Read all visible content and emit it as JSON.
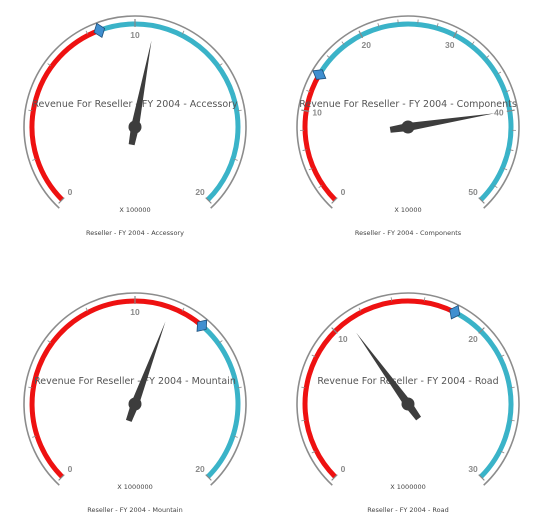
{
  "colors": {
    "bezel": "#8c8c8c",
    "low_range": "#ee1111",
    "high_range": "#3ab3c8",
    "needle": "#3d3d3d",
    "marker": "#3f8fd0",
    "marker_stroke": "#1e4f7a"
  },
  "chart_data": [
    {
      "type": "gauge",
      "title": "Revenue For Reseller - FY 2004 - Accessory",
      "unit_label": "X 100000",
      "caption": "Reseller - FY 2004 - Accessory",
      "min": 0,
      "max": 20,
      "major_ticks": [
        0,
        10,
        20
      ],
      "ranges": [
        {
          "from": 0,
          "to": 8.5,
          "color": "#ee1111"
        },
        {
          "from": 8.5,
          "to": 20,
          "color": "#3ab3c8"
        }
      ],
      "needle_value": 10.8,
      "marker_value": 8.5
    },
    {
      "type": "gauge",
      "title": "Revenue For Reseller - FY 2004 - Components",
      "unit_label": "X 10000",
      "caption": "Reseller - FY 2004 - Components",
      "min": 0,
      "max": 50,
      "major_ticks": [
        0,
        10,
        20,
        30,
        40,
        50
      ],
      "ranges": [
        {
          "from": 0,
          "to": 14,
          "color": "#ee1111"
        },
        {
          "from": 14,
          "to": 50,
          "color": "#3ab3c8"
        }
      ],
      "needle_value": 40,
      "marker_value": 14
    },
    {
      "type": "gauge",
      "title": "Revenue For Reseller - FY 2004 - Mountain",
      "unit_label": "X 1000000",
      "caption": "Reseller - FY 2004 - Mountain",
      "min": 0,
      "max": 20,
      "major_ticks": [
        0,
        10,
        20
      ],
      "ranges": [
        {
          "from": 0,
          "to": 13,
          "color": "#ee1111"
        },
        {
          "from": 13,
          "to": 20,
          "color": "#3ab3c8"
        }
      ],
      "needle_value": 11.5,
      "marker_value": 13
    },
    {
      "type": "gauge",
      "title": "Revenue For Reseller - FY 2004 - Road",
      "unit_label": "X 1000000",
      "caption": "Reseller - FY 2004 - Road",
      "min": 0,
      "max": 30,
      "major_ticks": [
        0,
        10,
        20,
        30
      ],
      "ranges": [
        {
          "from": 0,
          "to": 18,
          "color": "#ee1111"
        },
        {
          "from": 18,
          "to": 30,
          "color": "#3ab3c8"
        }
      ],
      "needle_value": 11,
      "marker_value": 18
    }
  ]
}
